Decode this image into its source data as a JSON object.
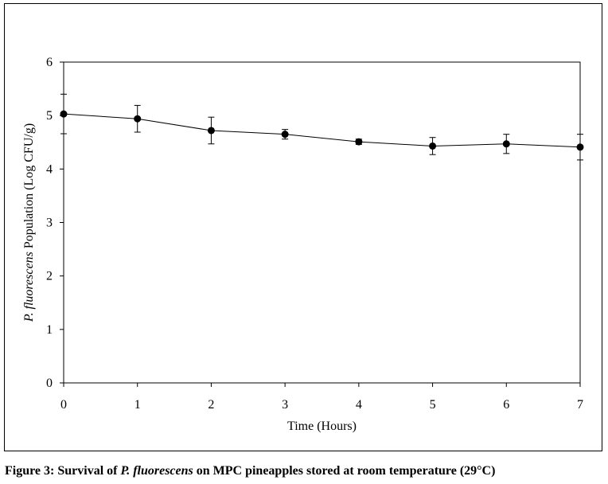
{
  "chart_data": {
    "type": "line",
    "title": "",
    "xlabel": "Time (Hours)",
    "ylabel_italic": "P. fluorescens",
    "ylabel_rest": " Population (Log CFU/g)",
    "x": [
      0,
      1,
      2,
      3,
      4,
      5,
      6,
      7
    ],
    "x_ticks": [
      "0",
      "1",
      "2",
      "3",
      "4",
      "5",
      "6",
      "7"
    ],
    "y_ticks": [
      "0",
      "1",
      "2",
      "3",
      "4",
      "5",
      "6"
    ],
    "xlim": [
      0,
      7
    ],
    "ylim": [
      0,
      6
    ],
    "grid": false,
    "legend": false,
    "series": [
      {
        "values": [
          5.03,
          4.94,
          4.72,
          4.65,
          4.51,
          4.43,
          4.47,
          4.41
        ],
        "error": [
          0.37,
          0.25,
          0.25,
          0.09,
          0.05,
          0.16,
          0.18,
          0.24
        ]
      }
    ],
    "colors": {
      "line": "#000000",
      "marker": "#000000",
      "axis": "#000000"
    }
  },
  "caption": {
    "prefix": "Figure 3: Survival of ",
    "italic": "P. fluorescens",
    "suffix": " on MPC pineapples stored at room temperature (29°C)"
  }
}
